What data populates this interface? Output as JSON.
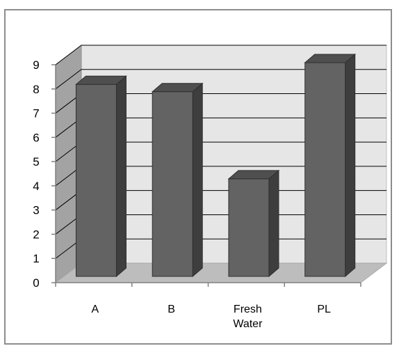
{
  "chart_data": {
    "type": "bar",
    "style": "3d-column",
    "categories": [
      "A",
      "B",
      "Fresh Water",
      "PL"
    ],
    "category_label_lines": [
      [
        "A"
      ],
      [
        "B"
      ],
      [
        "Fresh",
        "Water"
      ],
      [
        "PL"
      ]
    ],
    "values": [
      8.1,
      7.8,
      4.2,
      9.0
    ],
    "title": "",
    "xlabel": "",
    "ylabel": "",
    "ylim": [
      0,
      9
    ],
    "yticks": [
      "0",
      "1",
      "2",
      "3",
      "4",
      "5",
      "6",
      "7",
      "8",
      "9"
    ],
    "grid": true,
    "legend": "none",
    "colors": {
      "bar_front": "#636363",
      "bar_side": "#3e3e3e",
      "bar_top": "#4f4f4f",
      "back_wall": "#e6e6e6",
      "side_wall": "#a3a3a3",
      "floor": "#bdbdbd",
      "grid": "#000000",
      "axis": "#808080"
    }
  }
}
